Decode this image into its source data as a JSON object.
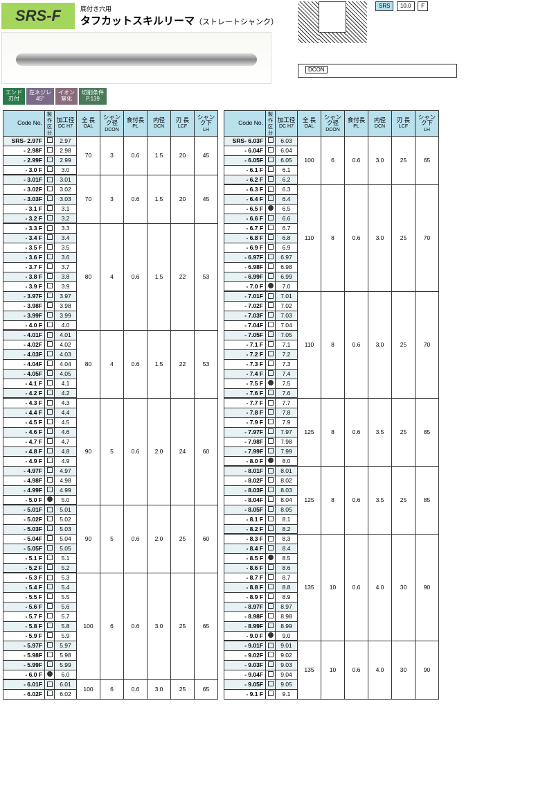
{
  "header": {
    "model": "SRS-F",
    "subtitle_small": "底付き穴用",
    "subtitle_big": "タフカットスキルリーマ",
    "subtitle_paren": "（ストレートシャンク）",
    "spec_srs": "SRS",
    "spec_val": "10.0",
    "spec_f": "F",
    "dcon": "DCON"
  },
  "badges": [
    {
      "l1": "エンド",
      "l2": "刃付"
    },
    {
      "l1": "左ネジレ",
      "l2": "45°"
    },
    {
      "l1": "イオン",
      "l2": "窒化"
    },
    {
      "l1": "切削条件",
      "l2": "P.139"
    }
  ],
  "columns": {
    "code": "Code No.",
    "chk": "製作\n区分",
    "dc_top": "加工径",
    "dc_sub": "DC H7",
    "oal_top": "全 長",
    "oal_sub": "OAL",
    "dcon_top": "シャンク径",
    "dcon_sub": "DCON",
    "pl_top": "食付長",
    "pl_sub": "PL",
    "dcn_top": "内径",
    "dcn_sub": "DCN",
    "lcf_top": "刃 長",
    "lcf_sub": "LCF",
    "lh_top": "シャンク下",
    "lh_sub": "LH"
  },
  "left": {
    "prefix": "SRS-",
    "codes": [
      "2.97F",
      "2.98F",
      "2.99F",
      "3.0 F",
      "3.01F",
      "3.02F",
      "3.03F",
      "3.1 F",
      "3.2 F",
      "3.3 F",
      "3.4 F",
      "3.5 F",
      "3.6 F",
      "3.7 F",
      "3.8 F",
      "3.9 F",
      "3.97F",
      "3.98F",
      "3.99F",
      "4.0 F",
      "4.01F",
      "4.02F",
      "4.03F",
      "4.04F",
      "4.05F",
      "4.1 F",
      "4.2 F",
      "4.3 F",
      "4.4 F",
      "4.5 F",
      "4.6 F",
      "4.7 F",
      "4.8 F",
      "4.9 F",
      "4.97F",
      "4.98F",
      "4.99F",
      "5.0 F",
      "5.01F",
      "5.02F",
      "5.03F",
      "5.04F",
      "5.05F",
      "5.1 F",
      "5.2 F",
      "5.3 F",
      "5.4 F",
      "5.5 F",
      "5.6 F",
      "5.7 F",
      "5.8 F",
      "5.9 F",
      "5.97F",
      "5.98F",
      "5.99F",
      "6.0 F",
      "6.01F",
      "6.02F"
    ],
    "dots": [
      37,
      55
    ],
    "dc": [
      "2.97",
      "2.98",
      "2.99",
      "3.0",
      "3.01",
      "3.02",
      "3.03",
      "3.1",
      "3.2",
      "3.3",
      "3.4",
      "3.5",
      "3.6",
      "3.7",
      "3.8",
      "3.9",
      "3.97",
      "3.98",
      "3.99",
      "4.0",
      "4.01",
      "4.02",
      "4.03",
      "4.04",
      "4.05",
      "4.1",
      "4.2",
      "4.3",
      "4.4",
      "4.5",
      "4.6",
      "4.7",
      "4.8",
      "4.9",
      "4.97",
      "4.98",
      "4.99",
      "5.0",
      "5.01",
      "5.02",
      "5.03",
      "5.04",
      "5.05",
      "5.1",
      "5.2",
      "5.3",
      "5.4",
      "5.5",
      "5.6",
      "5.7",
      "5.8",
      "5.9",
      "5.97",
      "5.98",
      "5.99",
      "6.0",
      "6.01",
      "6.02"
    ],
    "groups": [
      {
        "span": 4,
        "oal": "70",
        "dcon": "3",
        "pl": "0.6",
        "dcn": "1.5",
        "lcf": "20",
        "lh": "45",
        "breakAfter": true
      },
      {
        "span": 5,
        "oal": "70",
        "dcon": "3",
        "pl": "0.6",
        "dcn": "1.5",
        "lcf": "20",
        "lh": "45",
        "breakAfter": true
      },
      {
        "span": 11,
        "oal": "80",
        "dcon": "4",
        "pl": "0.6",
        "dcn": "1.5",
        "lcf": "22",
        "lh": "53",
        "breakAfter": true
      },
      {
        "span": 7,
        "oal": "80",
        "dcon": "4",
        "pl": "0.6",
        "dcn": "1.5",
        "lcf": "22",
        "lh": "53",
        "breakAfter": true
      },
      {
        "span": 11,
        "oal": "90",
        "dcon": "5",
        "pl": "0.6",
        "dcn": "2.0",
        "lcf": "24",
        "lh": "60",
        "breakAfter": true
      },
      {
        "span": 7,
        "oal": "90",
        "dcon": "5",
        "pl": "0.6",
        "dcn": "2.0",
        "lcf": "25",
        "lh": "60",
        "breakAfter": true
      },
      {
        "span": 11,
        "oal": "100",
        "dcon": "6",
        "pl": "0.6",
        "dcn": "3.0",
        "lcf": "25",
        "lh": "65",
        "breakAfter": true
      },
      {
        "span": 2,
        "oal": "100",
        "dcon": "6",
        "pl": "0.6",
        "dcn": "3.0",
        "lcf": "25",
        "lh": "65",
        "breakAfter": false
      }
    ]
  },
  "right": {
    "prefix": "SRS-",
    "codes": [
      "6.03F",
      "6.04F",
      "6.05F",
      "6.1 F",
      "6.2 F",
      "6.3 F",
      "6.4 F",
      "6.5 F",
      "6.6 F",
      "6.7 F",
      "6.8 F",
      "6.9 F",
      "6.97F",
      "6.98F",
      "6.99F",
      "7.0 F",
      "7.01F",
      "7.02F",
      "7.03F",
      "7.04F",
      "7.05F",
      "7.1 F",
      "7.2 F",
      "7.3 F",
      "7.4 F",
      "7.5 F",
      "7.6 F",
      "7.7 F",
      "7.8 F",
      "7.9 F",
      "7.97F",
      "7.98F",
      "7.99F",
      "8.0 F",
      "8.01F",
      "8.02F",
      "8.03F",
      "8.04F",
      "8.05F",
      "8.1 F",
      "8.2 F",
      "8.3 F",
      "8.4 F",
      "8.5 F",
      "8.6 F",
      "8.7 F",
      "8.8 F",
      "8.9 F",
      "8.97F",
      "8.98F",
      "8.99F",
      "9.0 F",
      "9.01F",
      "9.02F",
      "9.03F",
      "9.04F",
      "9.05F",
      "9.1 F"
    ],
    "dots": [
      7,
      15,
      25,
      33,
      43,
      51
    ],
    "dc": [
      "6.03",
      "6.04",
      "6.05",
      "6.1",
      "6.2",
      "6.3",
      "6.4",
      "6.5",
      "6.6",
      "6.7",
      "6.8",
      "6.9",
      "6.97",
      "6.98",
      "6.99",
      "7.0",
      "7.01",
      "7.02",
      "7.03",
      "7.04",
      "7.05",
      "7.1",
      "7.2",
      "7.3",
      "7.4",
      "7.5",
      "7.6",
      "7.7",
      "7.8",
      "7.9",
      "7.97",
      "7.98",
      "7.99",
      "8.0",
      "8.01",
      "8.02",
      "8.03",
      "8.04",
      "8.05",
      "8.1",
      "8.2",
      "8.3",
      "8.4",
      "8.5",
      "8.6",
      "8.7",
      "8.8",
      "8.9",
      "8.97",
      "8.98",
      "8.99",
      "9.0",
      "9.01",
      "9.02",
      "9.03",
      "9.04",
      "9.05",
      "9.1"
    ],
    "groups": [
      {
        "span": 5,
        "oal": "100",
        "dcon": "6",
        "pl": "0.6",
        "dcn": "3.0",
        "lcf": "25",
        "lh": "65",
        "breakAfter": true
      },
      {
        "span": 11,
        "oal": "110",
        "dcon": "8",
        "pl": "0.6",
        "dcn": "3.0",
        "lcf": "25",
        "lh": "70",
        "breakAfter": true
      },
      {
        "span": 11,
        "oal": "110",
        "dcon": "8",
        "pl": "0.6",
        "dcn": "3.0",
        "lcf": "25",
        "lh": "70",
        "breakAfter": true
      },
      {
        "span": 7,
        "oal": "125",
        "dcon": "8",
        "pl": "0.6",
        "dcn": "3.5",
        "lcf": "25",
        "lh": "85",
        "breakAfter": true
      },
      {
        "span": 7,
        "oal": "125",
        "dcon": "8",
        "pl": "0.6",
        "dcn": "3.5",
        "lcf": "25",
        "lh": "85",
        "breakAfter": true
      },
      {
        "span": 11,
        "oal": "135",
        "dcon": "10",
        "pl": "0.6",
        "dcn": "4.0",
        "lcf": "30",
        "lh": "90",
        "breakAfter": true
      },
      {
        "span": 6,
        "oal": "135",
        "dcon": "10",
        "pl": "0.6",
        "dcn": "4.0",
        "lcf": "30",
        "lh": "90",
        "breakAfter": false
      }
    ]
  },
  "colors": {
    "header_bg": "#b8e0ed",
    "shade_bg": "#e8f2f5",
    "green": "#a4d65e"
  }
}
